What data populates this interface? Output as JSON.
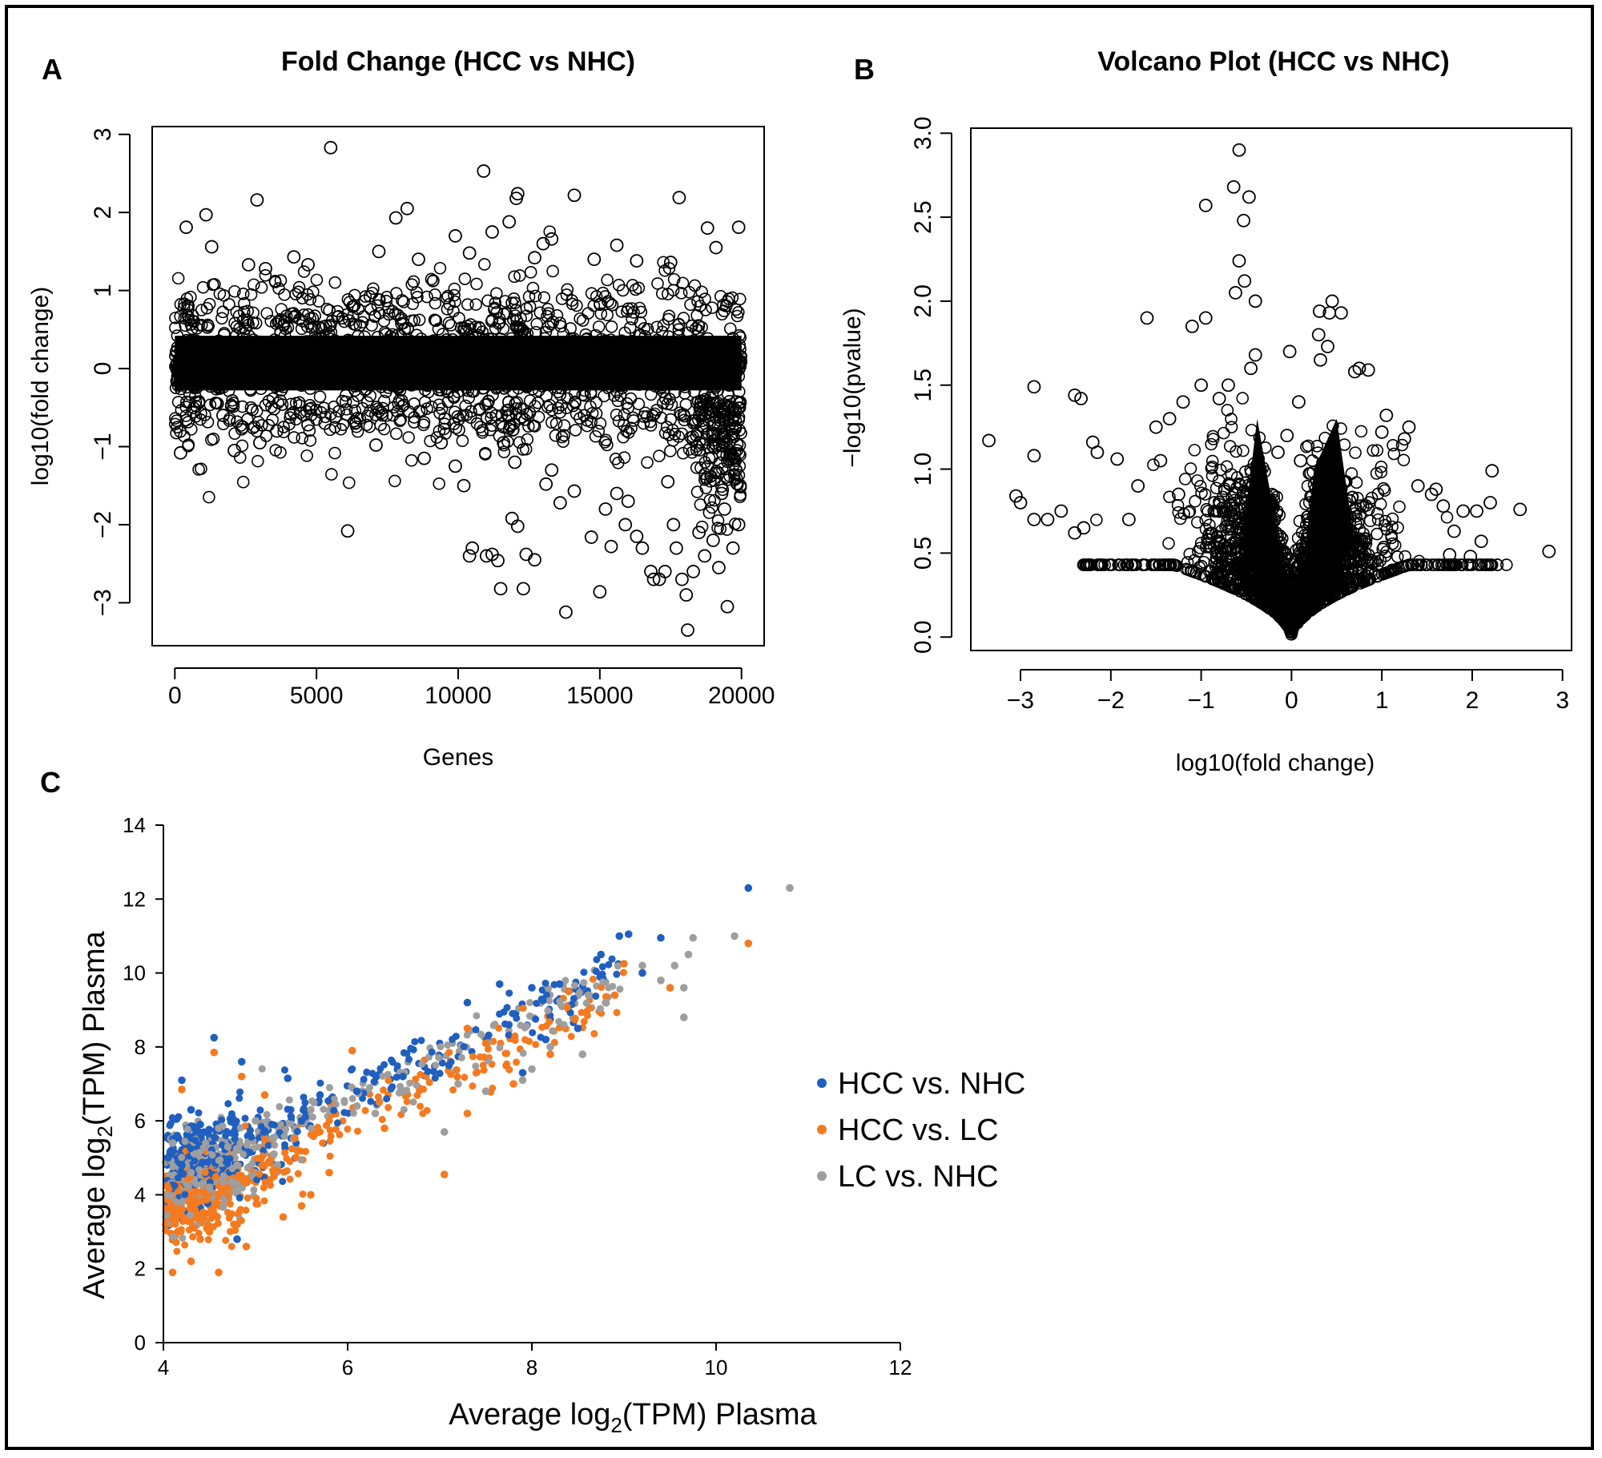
{
  "figure": {
    "panel_letters": {
      "a": "A",
      "b": "B",
      "c": "C"
    }
  },
  "chart_data": [
    {
      "id": "A",
      "type": "scatter",
      "title": "Fold Change (HCC vs NHC)",
      "xlabel": "Genes",
      "ylabel": "log10(fold change)",
      "xlim": [
        -800,
        20800
      ],
      "ylim": [
        -3.55,
        3.1
      ],
      "xticks": [
        0,
        5000,
        10000,
        15000,
        20000
      ],
      "xtick_labels": [
        "0",
        "5000",
        "10000",
        "15000",
        "20000"
      ],
      "yticks": [
        -3,
        -2,
        -1,
        0,
        1,
        2,
        3
      ],
      "ytick_labels": [
        "−3",
        "−2",
        "−1",
        "0",
        "1",
        "2",
        "3"
      ],
      "marker": "open-circle",
      "color": "#000000",
      "dense_band": {
        "x": [
          0,
          20000
        ],
        "y": [
          -0.6,
          0.7
        ]
      },
      "points": [
        [
          5500,
          2.83
        ],
        [
          10900,
          2.53
        ],
        [
          12100,
          2.24
        ],
        [
          12050,
          2.18
        ],
        [
          14100,
          2.22
        ],
        [
          17800,
          2.19
        ],
        [
          2900,
          2.16
        ],
        [
          8200,
          2.05
        ],
        [
          7800,
          1.93
        ],
        [
          11200,
          1.75
        ],
        [
          13300,
          1.66
        ],
        [
          19900,
          1.81
        ],
        [
          18800,
          1.8
        ],
        [
          19100,
          1.55
        ],
        [
          1300,
          1.56
        ],
        [
          400,
          1.81
        ],
        [
          1100,
          1.97
        ],
        [
          9900,
          1.7
        ],
        [
          11800,
          1.88
        ],
        [
          4200,
          1.43
        ],
        [
          7200,
          1.5
        ],
        [
          13000,
          1.6
        ],
        [
          15600,
          1.58
        ],
        [
          2600,
          1.33
        ],
        [
          3200,
          1.28
        ],
        [
          4700,
          1.33
        ],
        [
          8600,
          1.4
        ],
        [
          10400,
          1.48
        ],
        [
          12700,
          1.42
        ],
        [
          16300,
          1.38
        ],
        [
          17500,
          1.36
        ],
        [
          14800,
          1.4
        ],
        [
          200,
          -1.08
        ],
        [
          2100,
          -1.05
        ],
        [
          6100,
          -2.08
        ],
        [
          7100,
          -0.98
        ],
        [
          8800,
          -1.15
        ],
        [
          9400,
          -0.95
        ],
        [
          9900,
          -1.25
        ],
        [
          10200,
          -1.5
        ],
        [
          10500,
          -2.3
        ],
        [
          10400,
          -2.4
        ],
        [
          11000,
          -2.4
        ],
        [
          11200,
          -2.38
        ],
        [
          11400,
          -2.46
        ],
        [
          11500,
          -2.82
        ],
        [
          11900,
          -1.92
        ],
        [
          12100,
          -2.02
        ],
        [
          12300,
          -2.82
        ],
        [
          12400,
          -2.38
        ],
        [
          12700,
          -2.45
        ],
        [
          13100,
          -1.48
        ],
        [
          13600,
          -1.72
        ],
        [
          13800,
          -3.12
        ],
        [
          14100,
          -1.57
        ],
        [
          14700,
          -2.16
        ],
        [
          15000,
          -2.86
        ],
        [
          15400,
          -2.28
        ],
        [
          15600,
          -1.6
        ],
        [
          15900,
          -2.0
        ],
        [
          16300,
          -2.15
        ],
        [
          16500,
          -2.3
        ],
        [
          16800,
          -2.6
        ],
        [
          16900,
          -2.7
        ],
        [
          17100,
          -2.7
        ],
        [
          17300,
          -2.6
        ],
        [
          17600,
          -2.0
        ],
        [
          17700,
          -2.3
        ],
        [
          17900,
          -2.7
        ],
        [
          18050,
          -2.9
        ],
        [
          18100,
          -3.35
        ],
        [
          18300,
          -2.6
        ],
        [
          18500,
          -2.1
        ],
        [
          18700,
          -2.4
        ],
        [
          19000,
          -2.2
        ],
        [
          19200,
          -2.55
        ],
        [
          19500,
          -3.05
        ],
        [
          19700,
          -2.3
        ],
        [
          19900,
          -2.0
        ],
        [
          19950,
          -1.5
        ],
        [
          19800,
          -1.3
        ],
        [
          19600,
          -1.1
        ],
        [
          19400,
          -1.8
        ],
        [
          19300,
          -1.6
        ],
        [
          17400,
          -1.45
        ],
        [
          16000,
          -1.7
        ],
        [
          15200,
          -1.8
        ],
        [
          12000,
          -1.2
        ],
        [
          11600,
          -0.95
        ],
        [
          13300,
          -1.3
        ],
        [
          3000,
          -0.95
        ],
        [
          2400,
          -0.75
        ],
        [
          4700,
          -0.72
        ],
        [
          5300,
          -0.7
        ],
        [
          3600,
          -0.8
        ],
        [
          1700,
          -0.6
        ]
      ]
    },
    {
      "id": "B",
      "type": "scatter",
      "title": "Volcano Plot (HCC vs NHC)",
      "xlabel": "log10(fold change)",
      "ylabel": "−log10(pvalue)",
      "xlim": [
        -3.55,
        3.1
      ],
      "ylim": [
        -0.08,
        3.03
      ],
      "xticks": [
        -3,
        -2,
        -1,
        0,
        1,
        2,
        3
      ],
      "xtick_labels": [
        "−3",
        "−2",
        "−1",
        "0",
        "1",
        "2",
        "3"
      ],
      "yticks": [
        0.0,
        0.5,
        1.0,
        1.5,
        2.0,
        2.5,
        3.0
      ],
      "ytick_labels": [
        "0.0",
        "0.5",
        "1.0",
        "1.5",
        "2.0",
        "2.5",
        "3.0"
      ],
      "marker": "open-circle",
      "color": "#000000",
      "points": [
        [
          -0.58,
          2.9
        ],
        [
          -0.64,
          2.68
        ],
        [
          -0.47,
          2.62
        ],
        [
          -0.53,
          2.48
        ],
        [
          -0.95,
          2.57
        ],
        [
          -0.58,
          2.24
        ],
        [
          -0.52,
          2.12
        ],
        [
          -0.4,
          2.0
        ],
        [
          -0.62,
          2.05
        ],
        [
          0.31,
          1.94
        ],
        [
          0.42,
          1.93
        ],
        [
          0.45,
          2.0
        ],
        [
          0.55,
          1.93
        ],
        [
          -0.95,
          1.9
        ],
        [
          -1.6,
          1.9
        ],
        [
          -1.1,
          1.85
        ],
        [
          -3.35,
          1.17
        ],
        [
          -2.85,
          1.49
        ],
        [
          -2.4,
          1.44
        ],
        [
          -2.33,
          1.42
        ],
        [
          -2.2,
          1.16
        ],
        [
          -2.15,
          1.1
        ],
        [
          -1.93,
          1.06
        ],
        [
          -2.85,
          1.08
        ],
        [
          -3.05,
          0.84
        ],
        [
          -3.0,
          0.8
        ],
        [
          -2.85,
          0.7
        ],
        [
          -2.7,
          0.7
        ],
        [
          -2.55,
          0.75
        ],
        [
          -2.4,
          0.62
        ],
        [
          -2.3,
          0.65
        ],
        [
          2.22,
          0.99
        ],
        [
          2.53,
          0.76
        ],
        [
          2.85,
          0.51
        ],
        [
          2.2,
          0.8
        ],
        [
          2.05,
          0.75
        ],
        [
          1.9,
          0.75
        ],
        [
          1.8,
          0.63
        ],
        [
          1.75,
          0.49
        ],
        [
          1.68,
          0.78
        ],
        [
          1.6,
          0.88
        ],
        [
          1.55,
          0.85
        ],
        [
          1.4,
          0.9
        ],
        [
          1.3,
          1.25
        ],
        [
          1.25,
          1.18
        ],
        [
          1.05,
          1.32
        ],
        [
          1.0,
          1.22
        ],
        [
          0.85,
          1.59
        ],
        [
          0.75,
          1.6
        ],
        [
          0.7,
          1.58
        ],
        [
          0.4,
          1.73
        ],
        [
          0.3,
          1.8
        ],
        [
          0.32,
          1.65
        ],
        [
          -0.4,
          1.68
        ],
        [
          -0.45,
          1.6
        ],
        [
          -0.7,
          1.5
        ],
        [
          -0.8,
          1.42
        ],
        [
          -1.0,
          1.5
        ],
        [
          -1.2,
          1.4
        ],
        [
          -1.35,
          1.3
        ],
        [
          -1.5,
          1.25
        ],
        [
          -1.7,
          0.9
        ],
        [
          -1.8,
          0.7
        ],
        [
          -0.02,
          1.7
        ],
        [
          0.08,
          1.4
        ],
        [
          -0.05,
          1.2
        ],
        [
          0.1,
          1.05
        ],
        [
          -0.15,
          1.1
        ],
        [
          2.1,
          0.57
        ],
        [
          1.98,
          0.48
        ],
        [
          -1.25,
          0.85
        ],
        [
          -1.45,
          1.05
        ]
      ],
      "floor_curve_x": [
        -2.35,
        2.4
      ]
    },
    {
      "id": "C",
      "type": "scatter",
      "title": "",
      "xlabel": "Average log2(TPM) Plasma",
      "ylabel": "Average log2(TPM) Plasma",
      "xlim": [
        4,
        12
      ],
      "ylim": [
        0,
        14
      ],
      "xticks": [
        4,
        6,
        8,
        10,
        12
      ],
      "xtick_labels": [
        "4",
        "6",
        "8",
        "10",
        "12"
      ],
      "yticks": [
        0,
        2,
        4,
        6,
        8,
        10,
        12,
        14
      ],
      "ytick_labels": [
        "0",
        "2",
        "4",
        "6",
        "8",
        "10",
        "12",
        "14"
      ],
      "legend_position": "right",
      "series": [
        {
          "name": "HCC vs. NHC",
          "color": "#1f5fbf",
          "points": [
            [
              10.35,
              12.3
            ],
            [
              9.05,
              11.05
            ],
            [
              8.95,
              11.0
            ],
            [
              9.4,
              10.95
            ],
            [
              8.75,
              10.5
            ],
            [
              9.2,
              10.0
            ],
            [
              7.65,
              9.7
            ],
            [
              8.0,
              9.6
            ],
            [
              8.3,
              9.7
            ],
            [
              7.3,
              9.2
            ],
            [
              7.75,
              8.6
            ],
            [
              8.15,
              8.2
            ],
            [
              4.55,
              8.25
            ],
            [
              4.2,
              7.1
            ],
            [
              4.85,
              7.6
            ],
            [
              5.35,
              7.15
            ],
            [
              5.7,
              6.7
            ],
            [
              6.1,
              6.8
            ],
            [
              4.3,
              6.3
            ],
            [
              4.4,
              5.9
            ],
            [
              4.15,
              5.6
            ],
            [
              4.05,
              5.0
            ],
            [
              4.2,
              4.8
            ],
            [
              4.8,
              2.8
            ],
            [
              5.1,
              5.7
            ],
            [
              5.5,
              6.0
            ],
            [
              6.6,
              7.2
            ],
            [
              7.1,
              7.5
            ],
            [
              8.5,
              8.5
            ],
            [
              7.9,
              7.3
            ]
          ]
        },
        {
          "name": "HCC vs. LC",
          "color": "#f47a20",
          "points": [
            [
              10.35,
              10.8
            ],
            [
              9.0,
              10.25
            ],
            [
              8.4,
              9.5
            ],
            [
              8.9,
              9.4
            ],
            [
              9.5,
              9.6
            ],
            [
              7.3,
              8.5
            ],
            [
              7.5,
              8.1
            ],
            [
              6.05,
              7.9
            ],
            [
              4.55,
              7.85
            ],
            [
              4.85,
              7.2
            ],
            [
              5.1,
              6.7
            ],
            [
              4.2,
              6.85
            ],
            [
              7.05,
              4.55
            ],
            [
              4.1,
              1.9
            ],
            [
              4.3,
              2.2
            ],
            [
              4.6,
              1.9
            ],
            [
              4.5,
              3.0
            ],
            [
              4.8,
              3.2
            ],
            [
              5.3,
              3.4
            ],
            [
              5.5,
              3.7
            ],
            [
              5.8,
              4.6
            ],
            [
              6.4,
              5.8
            ],
            [
              7.3,
              6.2
            ],
            [
              7.8,
              7.0
            ],
            [
              8.2,
              7.8
            ],
            [
              5.6,
              4.0
            ],
            [
              4.9,
              2.6
            ],
            [
              4.2,
              3.6
            ],
            [
              4.4,
              2.8
            ],
            [
              5.2,
              4.5
            ]
          ]
        },
        {
          "name": "LC vs. NHC",
          "color": "#9e9e9e",
          "points": [
            [
              10.8,
              12.3
            ],
            [
              10.2,
              11.0
            ],
            [
              9.75,
              10.95
            ],
            [
              9.7,
              10.5
            ],
            [
              9.55,
              10.2
            ],
            [
              9.2,
              10.2
            ],
            [
              9.65,
              9.6
            ],
            [
              9.65,
              8.8
            ],
            [
              8.55,
              7.8
            ],
            [
              7.9,
              7.1
            ],
            [
              7.05,
              5.7
            ],
            [
              7.5,
              6.8
            ],
            [
              8.0,
              7.4
            ],
            [
              6.6,
              6.8
            ],
            [
              6.1,
              6.4
            ],
            [
              5.6,
              6.3
            ],
            [
              5.0,
              6.0
            ],
            [
              4.6,
              5.8
            ],
            [
              4.1,
              5.4
            ],
            [
              4.3,
              4.6
            ],
            [
              4.5,
              4.2
            ],
            [
              4.8,
              4.8
            ],
            [
              5.2,
              5.1
            ],
            [
              6.3,
              6.2
            ],
            [
              7.2,
              7.0
            ],
            [
              8.2,
              8.0
            ],
            [
              8.8,
              9.2
            ],
            [
              9.4,
              9.8
            ],
            [
              4.2,
              3.8
            ],
            [
              4.7,
              5.3
            ]
          ]
        }
      ],
      "dense_cluster": {
        "x": [
          4.0,
          5.4
        ],
        "y": [
          3.0,
          6.2
        ]
      }
    }
  ]
}
